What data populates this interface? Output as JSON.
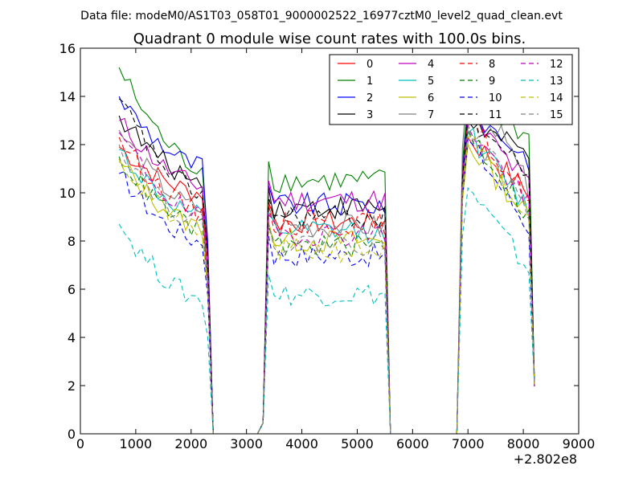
{
  "header": {
    "datafile": "Data file: modeM0/AS1T03_058T01_9000002522_16977cztM0_level2_quad_clean.evt"
  },
  "chart_data": {
    "type": "line",
    "title": "Quadrant 0 module wise count rates with 100.0s bins.",
    "xlabel": "",
    "ylabel": "",
    "x_offset_label": "+2.802e8",
    "xlim": [
      0,
      9000
    ],
    "ylim": [
      0,
      16
    ],
    "xticks": [
      0,
      1000,
      2000,
      3000,
      4000,
      5000,
      6000,
      7000,
      8000,
      9000
    ],
    "xtick_labels": [
      "0",
      "1000",
      "2000",
      "3000",
      "4000",
      "5000",
      "6000",
      "7000",
      "8000",
      "9000"
    ],
    "yticks": [
      0,
      2,
      4,
      6,
      8,
      10,
      12,
      14,
      16
    ],
    "ytick_labels": [
      "0",
      "2",
      "4",
      "6",
      "8",
      "10",
      "12",
      "14",
      "16"
    ],
    "grid": false,
    "legend": {
      "placement": "top-right",
      "columns": 4
    },
    "series": [
      {
        "name": "0",
        "color": "#ff0000",
        "dash": false,
        "start": 11.9,
        "seg1_end": 10.0,
        "mid": 8.8,
        "seg3_start": 12.3,
        "seg3_end": 10.0
      },
      {
        "name": "1",
        "color": "#008000",
        "dash": false,
        "start": 15.2,
        "seg1_end": 11.0,
        "mid": 10.5,
        "seg3_start": 14.0,
        "seg3_end": 12.3
      },
      {
        "name": "2",
        "color": "#0000ff",
        "dash": false,
        "start": 14.0,
        "seg1_end": 11.1,
        "mid": 9.5,
        "seg3_start": 13.5,
        "seg3_end": 11.4
      },
      {
        "name": "3",
        "color": "#000000",
        "dash": false,
        "start": 13.2,
        "seg1_end": 10.5,
        "mid": 9.4,
        "seg3_start": 13.0,
        "seg3_end": 11.5
      },
      {
        "name": "4",
        "color": "#bf00bf",
        "dash": false,
        "start": 13.0,
        "seg1_end": 10.3,
        "mid": 9.7,
        "seg3_start": 13.3,
        "seg3_end": 10.3
      },
      {
        "name": "5",
        "color": "#00bfbf",
        "dash": false,
        "start": 11.8,
        "seg1_end": 9.0,
        "mid": 8.4,
        "seg3_start": 12.5,
        "seg3_end": 9.3
      },
      {
        "name": "6",
        "color": "#bfbf00",
        "dash": false,
        "start": 11.3,
        "seg1_end": 8.6,
        "mid": 8.0,
        "seg3_start": 12.0,
        "seg3_end": 9.0
      },
      {
        "name": "7",
        "color": "#808080",
        "dash": false,
        "start": 12.6,
        "seg1_end": 9.3,
        "mid": 8.6,
        "seg3_start": 14.8,
        "seg3_end": 10.2
      },
      {
        "name": "8",
        "color": "#ff0000",
        "dash": true,
        "start": 12.3,
        "seg1_end": 9.2,
        "mid": 8.7,
        "seg3_start": 13.0,
        "seg3_end": 9.8
      },
      {
        "name": "9",
        "color": "#008000",
        "dash": true,
        "start": 11.5,
        "seg1_end": 8.5,
        "mid": 7.8,
        "seg3_start": 12.6,
        "seg3_end": 9.0
      },
      {
        "name": "10",
        "color": "#0000ff",
        "dash": true,
        "start": 10.8,
        "seg1_end": 8.0,
        "mid": 7.4,
        "seg3_start": 12.2,
        "seg3_end": 8.6
      },
      {
        "name": "11",
        "color": "#000000",
        "dash": true,
        "start": 13.9,
        "seg1_end": 10.0,
        "mid": 9.0,
        "seg3_start": 13.2,
        "seg3_end": 10.7
      },
      {
        "name": "12",
        "color": "#bf00bf",
        "dash": true,
        "start": 12.5,
        "seg1_end": 9.0,
        "mid": 8.3,
        "seg3_start": 12.8,
        "seg3_end": 9.5
      },
      {
        "name": "13",
        "color": "#00bfbf",
        "dash": true,
        "start": 8.7,
        "seg1_end": 5.6,
        "mid": 5.8,
        "seg3_start": 10.2,
        "seg3_end": 6.8
      },
      {
        "name": "14",
        "color": "#bfbf00",
        "dash": true,
        "start": 11.4,
        "seg1_end": 8.4,
        "mid": 7.6,
        "seg3_start": 12.3,
        "seg3_end": 8.8
      },
      {
        "name": "15",
        "color": "#808080",
        "dash": true,
        "start": 12.0,
        "seg1_end": 8.8,
        "mid": 7.9,
        "seg3_start": 12.7,
        "seg3_end": 9.2
      }
    ]
  }
}
